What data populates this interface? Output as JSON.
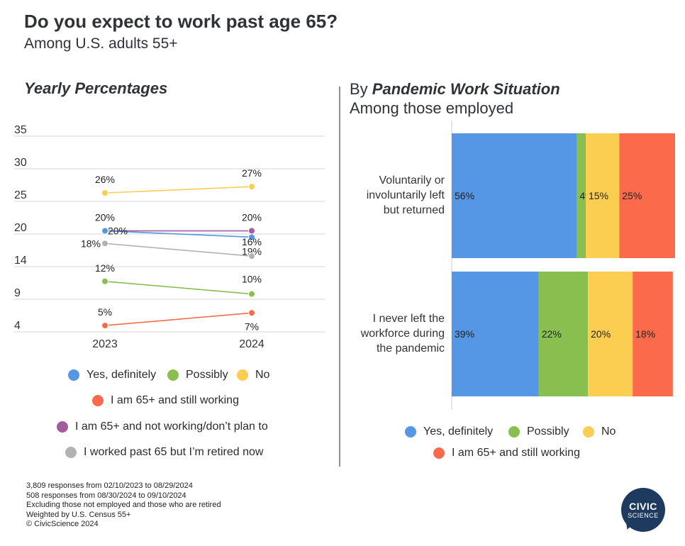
{
  "title": "Do you expect to work past age 65?",
  "subtitle": "Among U.S. adults 55+",
  "left_heading": "Yearly Percentages",
  "right_heading": {
    "prefix": "By ",
    "emphasis": "Pandemic Work Situation",
    "line2": "Among those employed"
  },
  "colors": {
    "yes": "#5596e5",
    "possibly": "#88bf4e",
    "no": "#fbcd50",
    "still_working": "#fb6b4b",
    "not_working": "#a35c9c",
    "retired": "#b2b2b2"
  },
  "chart_data": [
    {
      "type": "line",
      "title": "Yearly Percentages",
      "x": [
        "2023",
        "2024"
      ],
      "y_ticks": [
        "35",
        "30",
        "25",
        "20",
        "14",
        "9",
        "4"
      ],
      "ylim": [
        4,
        35
      ],
      "grid": true,
      "legend_position": "bottom",
      "series": [
        {
          "name": "No",
          "key": "no",
          "values": [
            26,
            27
          ],
          "labels": [
            "26%",
            "27%"
          ]
        },
        {
          "name": "I am 65+ and not working/don’t plan to",
          "key": "not_working",
          "values": [
            20,
            20
          ],
          "labels": [
            "20%",
            "20%"
          ]
        },
        {
          "name": "Yes, definitely",
          "key": "yes",
          "values": [
            20,
            19
          ],
          "labels": [
            "20%",
            "19%"
          ]
        },
        {
          "name": "I worked past 65 but I’m retired now",
          "key": "retired",
          "values": [
            18,
            16
          ],
          "labels": [
            "18%",
            "16%"
          ]
        },
        {
          "name": "Possibly",
          "key": "possibly",
          "values": [
            12,
            10
          ],
          "labels": [
            "12%",
            "10%"
          ]
        },
        {
          "name": "I am 65+ and still working",
          "key": "still_working",
          "values": [
            5,
            7
          ],
          "labels": [
            "5%",
            "7%"
          ]
        }
      ]
    },
    {
      "type": "bar",
      "orientation": "horizontal",
      "stacked": true,
      "title": "By Pandemic Work Situation",
      "categories": [
        "Voluntarily or involuntarily left but returned",
        "I never left the workforce during the pandemic"
      ],
      "category_lines": [
        [
          "Voluntarily or",
          "involuntarily left",
          "but returned"
        ],
        [
          "I never left the",
          "workforce during",
          "the pandemic"
        ]
      ],
      "series": [
        {
          "name": "Yes, definitely",
          "key": "yes",
          "values": [
            56,
            39
          ]
        },
        {
          "name": "Possibly",
          "key": "possibly",
          "values": [
            4,
            22
          ]
        },
        {
          "name": "No",
          "key": "no",
          "values": [
            15,
            20
          ]
        },
        {
          "name": "I am 65+ and still working",
          "key": "still_working",
          "values": [
            25,
            18
          ]
        }
      ],
      "legend_position": "bottom"
    }
  ],
  "left_legend": [
    "Yes, definitely",
    "Possibly",
    "No",
    "I am 65+ and still working",
    "I am 65+ and not working/don’t plan to",
    "I worked past 65 but I’m retired now"
  ],
  "right_legend": [
    "Yes, definitely",
    "Possibly",
    "No",
    "I am 65+ and still working"
  ],
  "footnotes": [
    "3,809 responses from 02/10/2023 to 08/29/2024",
    "508 responses from 08/30/2024 to 09/10/2024",
    "Excluding those not employed and those who are retired",
    "Weighted by U.S. Census 55+",
    "© CivicScience 2024"
  ],
  "logo": {
    "line1": "CIVIC",
    "line2": "SCIENCE"
  }
}
